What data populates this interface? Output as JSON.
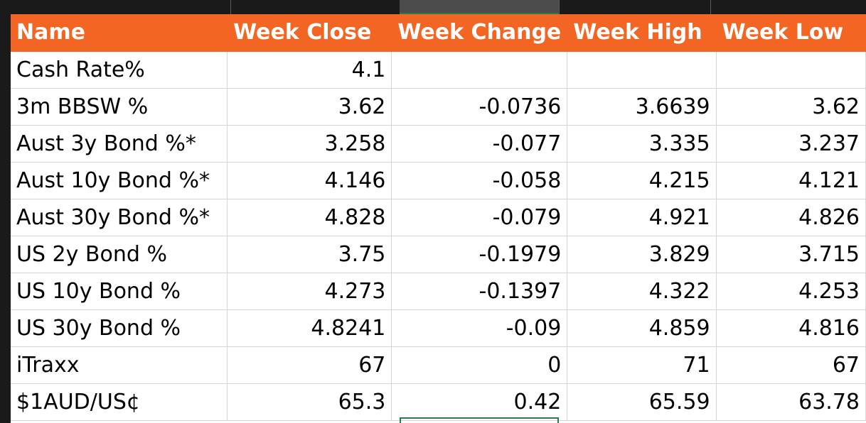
{
  "columns": [
    "Name",
    "Week Close",
    "Week Change",
    "Week High",
    "Week Low"
  ],
  "rows": [
    {
      "name": "Cash Rate%",
      "close": "4.1",
      "change": "",
      "high": "",
      "low": ""
    },
    {
      "name": "3m BBSW %",
      "close": "3.62",
      "change": "-0.0736",
      "high": "3.6639",
      "low": "3.62"
    },
    {
      "name": "Aust 3y Bond %*",
      "close": "3.258",
      "change": "-0.077",
      "high": "3.335",
      "low": "3.237"
    },
    {
      "name": "Aust 10y Bond %*",
      "close": "4.146",
      "change": "-0.058",
      "high": "4.215",
      "low": "4.121"
    },
    {
      "name": "Aust 30y Bond %*",
      "close": "4.828",
      "change": "-0.079",
      "high": "4.921",
      "low": "4.826"
    },
    {
      "name": "US 2y Bond %",
      "close": "3.75",
      "change": "-0.1979",
      "high": "3.829",
      "low": "3.715"
    },
    {
      "name": "US 10y Bond %",
      "close": "4.273",
      "change": "-0.1397",
      "high": "4.322",
      "low": "4.253"
    },
    {
      "name": "US 30y Bond %",
      "close": "4.8241",
      "change": "-0.09",
      "high": "4.859",
      "low": "4.816"
    },
    {
      "name": "iTraxx",
      "close": "67",
      "change": "0",
      "high": "71",
      "low": "67"
    },
    {
      "name": "$1AUD/US¢",
      "close": "65.3",
      "change": "0.42",
      "high": "65.59",
      "low": "63.78"
    }
  ],
  "colors": {
    "header_bg": "#f26522",
    "header_text": "#ffffff",
    "selection": "#2f7a4a"
  }
}
